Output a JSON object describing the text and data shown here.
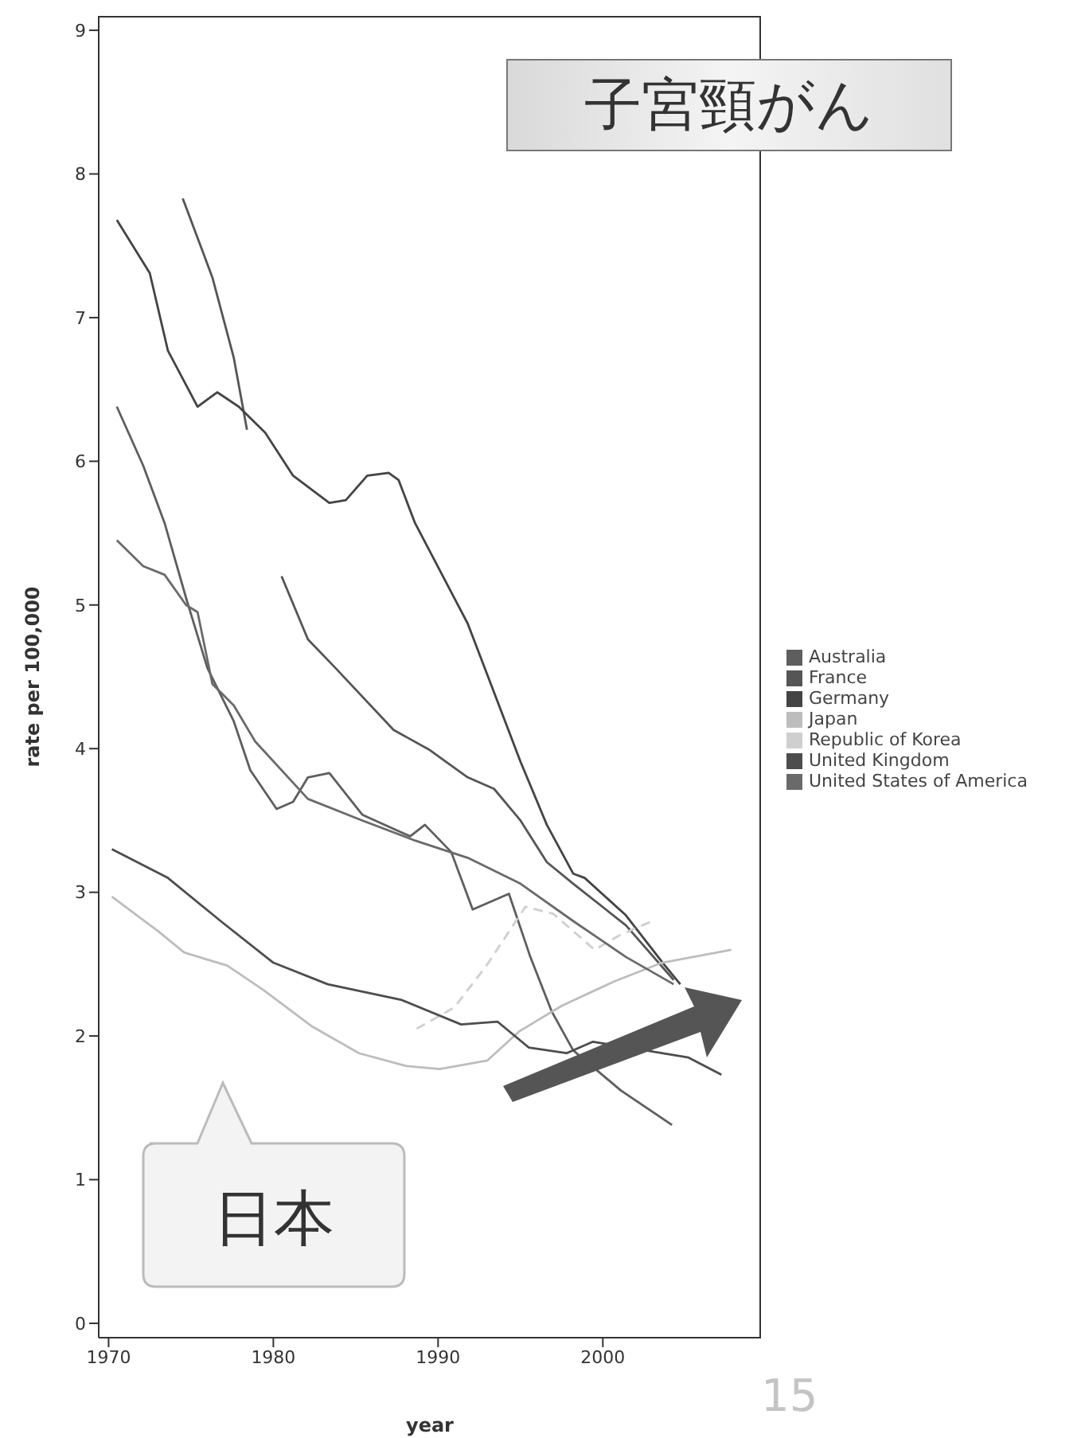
{
  "chart_data": {
    "type": "line",
    "title": "子宮頸がん",
    "xlabel": "year",
    "ylabel": "rate per 100,000",
    "xlim": [
      1969.4,
      2009.6
    ],
    "xticks": [
      1970,
      1980,
      1990,
      2000
    ],
    "ylim": [
      -0.1,
      9.1
    ],
    "yticks": [
      0,
      1,
      2,
      3,
      4,
      5,
      6,
      7,
      8,
      9
    ],
    "grid": false,
    "legend": "right",
    "annotations": [
      "日本",
      "15"
    ],
    "series": [
      {
        "name": "Australia",
        "color": "#5e5e5e",
        "x": [
          1970.5,
          1972.1,
          1973.4,
          1974.7,
          1976,
          1977.6,
          1978.6,
          1980.2,
          1981.2,
          1982.1,
          1983.4,
          1985.4,
          1988.3,
          1989.2,
          1990.8,
          1992.1,
          1994.3,
          1995.6,
          1996.9,
          1998.2,
          2001.1,
          2004.2
        ],
        "values": [
          6.38,
          5.97,
          5.57,
          5.05,
          4.56,
          4.19,
          3.85,
          3.58,
          3.63,
          3.8,
          3.83,
          3.54,
          3.39,
          3.47,
          3.28,
          2.88,
          2.99,
          2.55,
          2.17,
          1.9,
          1.62,
          1.38
        ]
      },
      {
        "name": "France",
        "color": "#555555",
        "x": [
          1974.5,
          1976.3,
          1977.6,
          1978.4,
          1979.4,
          1980.5,
          1982.1,
          1983.7,
          1987.3,
          1989.5,
          1991.8,
          1993.4,
          1995,
          1996.6,
          1998.2,
          2001.4,
          2004.3
        ],
        "values": [
          7.83,
          7.28,
          6.72,
          6.22,
          null,
          5.2,
          4.76,
          4.57,
          4.13,
          3.99,
          3.8,
          3.72,
          3.5,
          3.21,
          3.06,
          2.77,
          2.39
        ]
      },
      {
        "name": "Germany",
        "color": "#444444",
        "x": [
          1970.5,
          1972.5,
          1973.6,
          1975.4,
          1976.6,
          1977.9,
          1979.5,
          1981.2,
          1983.4,
          1984.4,
          1985.7,
          1987,
          1987.6,
          1988.6,
          1991.8,
          1993.4,
          1995,
          1996.6,
          1998.2,
          1998.9,
          2001.4,
          2003.7,
          2004.7
        ],
        "values": [
          7.68,
          7.31,
          6.77,
          6.38,
          6.48,
          6.38,
          6.2,
          5.9,
          5.71,
          5.73,
          5.9,
          5.92,
          5.87,
          5.57,
          4.87,
          4.39,
          3.91,
          3.47,
          3.13,
          3.1,
          2.84,
          2.5,
          2.36
        ]
      },
      {
        "name": "Japan",
        "color": "#bdbdbd",
        "x": [
          1970.2,
          1973,
          1974.6,
          1977.2,
          1979.4,
          1982.3,
          1985.2,
          1988.1,
          1990.1,
          1993,
          1994.9,
          1997.5,
          2000.7,
          2003.6,
          2007.8
        ],
        "values": [
          2.97,
          2.73,
          2.58,
          2.49,
          2.32,
          2.07,
          1.88,
          1.79,
          1.77,
          1.83,
          2.03,
          2.21,
          2.38,
          2.51,
          2.6
        ]
      },
      {
        "name": "Republic of Korea",
        "color": "#cfcfcf",
        "line_style": "dashed",
        "x": [
          1988.7,
          1991,
          1993,
          1995.3,
          1997,
          1999.5,
          2001,
          2003
        ],
        "values": [
          2.05,
          2.2,
          2.5,
          2.9,
          2.85,
          2.6,
          2.7,
          2.8
        ]
      },
      {
        "name": "United Kingdom",
        "color": "#4d4d4d",
        "x": [
          1970.2,
          1973.6,
          1976.8,
          1980,
          1983.3,
          1987.8,
          1991.4,
          1993.6,
          1995.5,
          1997.8,
          1999.4,
          2005.2,
          2007.2
        ],
        "values": [
          3.3,
          3.1,
          2.8,
          2.51,
          2.36,
          2.25,
          2.08,
          2.1,
          1.92,
          1.88,
          1.96,
          1.85,
          1.73
        ]
      },
      {
        "name": "United States of America",
        "color": "#6a6a6a",
        "x": [
          1970.5,
          1972.1,
          1973.4,
          1974.7,
          1975.4,
          1976.3,
          1977.6,
          1978.9,
          1982.1,
          1985.4,
          1988.6,
          1991.8,
          1995,
          1998.2,
          2001.4,
          2004.3
        ],
        "values": [
          5.45,
          5.27,
          5.21,
          5.0,
          4.95,
          4.45,
          4.3,
          4.05,
          3.65,
          3.5,
          3.36,
          3.24,
          3.06,
          2.8,
          2.55,
          2.36
        ]
      }
    ]
  }
}
